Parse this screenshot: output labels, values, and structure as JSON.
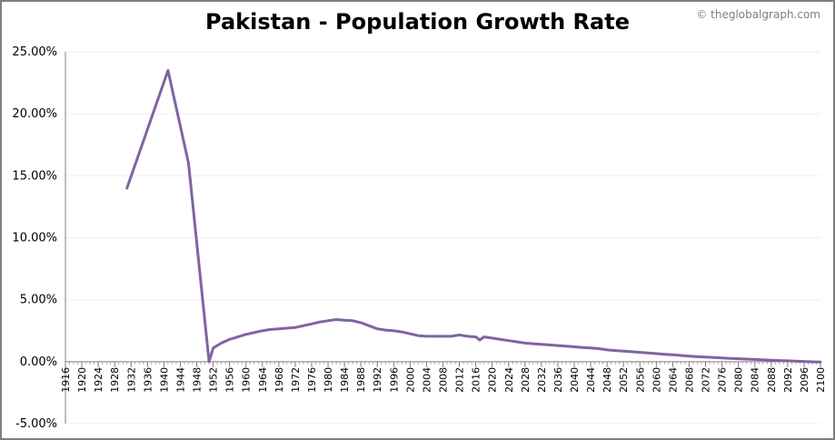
{
  "chart_data": {
    "type": "line",
    "title": "Pakistan - Population Growth Rate",
    "xlabel": "",
    "ylabel": "",
    "colors": {
      "line": "#8064a2",
      "grid": "#efefef",
      "axis": "#7f7f7f"
    },
    "xlim": [
      1916,
      2100
    ],
    "ylim": [
      -5,
      25
    ],
    "grid": true,
    "legend": "none",
    "y_ticks": [
      -5,
      0,
      5,
      10,
      15,
      20,
      25
    ],
    "y_tick_labels": [
      "-5.00%",
      "0.00%",
      "5.00%",
      "10.00%",
      "15.00%",
      "20.00%",
      "25.00%"
    ],
    "x_ticks": [
      1916,
      1920,
      1924,
      1928,
      1932,
      1936,
      1940,
      1944,
      1948,
      1952,
      1956,
      1960,
      1964,
      1968,
      1972,
      1976,
      1980,
      1984,
      1988,
      1992,
      1996,
      2000,
      2004,
      2008,
      2012,
      2016,
      2020,
      2024,
      2028,
      2032,
      2036,
      2040,
      2044,
      2048,
      2052,
      2056,
      2060,
      2064,
      2068,
      2072,
      2076,
      2080,
      2084,
      2088,
      2092,
      2096,
      2100
    ],
    "x_tick_labels": [
      "1916",
      "1920",
      "1924",
      "1928",
      "1932",
      "1936",
      "1940",
      "1944",
      "1948",
      "1952",
      "1956",
      "1960",
      "1964",
      "1968",
      "1972",
      "1976",
      "1980",
      "1984",
      "1988",
      "1992",
      "1996",
      "2000",
      "2004",
      "2008",
      "2012",
      "2016",
      "2020",
      "2024",
      "2028",
      "2032",
      "2036",
      "2040",
      "2044",
      "2048",
      "2052",
      "2056",
      "2060",
      "2064",
      "2068",
      "2072",
      "2076",
      "2080",
      "2084",
      "2088",
      "2092",
      "2096",
      "2100"
    ],
    "series": [
      {
        "points": [
          [
            1931,
            14.0
          ],
          [
            1941,
            23.5
          ],
          [
            1946,
            16.0
          ],
          [
            1951,
            0.0
          ],
          [
            1952,
            1.1
          ],
          [
            1954,
            1.5
          ],
          [
            1956,
            1.8
          ],
          [
            1958,
            2.0
          ],
          [
            1960,
            2.2
          ],
          [
            1962,
            2.35
          ],
          [
            1964,
            2.5
          ],
          [
            1966,
            2.6
          ],
          [
            1968,
            2.65
          ],
          [
            1970,
            2.7
          ],
          [
            1972,
            2.75
          ],
          [
            1974,
            2.9
          ],
          [
            1976,
            3.05
          ],
          [
            1978,
            3.2
          ],
          [
            1980,
            3.3
          ],
          [
            1982,
            3.4
          ],
          [
            1984,
            3.35
          ],
          [
            1986,
            3.3
          ],
          [
            1988,
            3.15
          ],
          [
            1990,
            2.9
          ],
          [
            1992,
            2.65
          ],
          [
            1994,
            2.55
          ],
          [
            1996,
            2.5
          ],
          [
            1998,
            2.4
          ],
          [
            2000,
            2.25
          ],
          [
            2002,
            2.1
          ],
          [
            2004,
            2.05
          ],
          [
            2006,
            2.05
          ],
          [
            2008,
            2.05
          ],
          [
            2010,
            2.05
          ],
          [
            2012,
            2.15
          ],
          [
            2014,
            2.05
          ],
          [
            2016,
            2.0
          ],
          [
            2017,
            1.75
          ],
          [
            2018,
            2.0
          ],
          [
            2020,
            1.9
          ],
          [
            2022,
            1.8
          ],
          [
            2024,
            1.7
          ],
          [
            2026,
            1.6
          ],
          [
            2028,
            1.5
          ],
          [
            2030,
            1.45
          ],
          [
            2032,
            1.4
          ],
          [
            2034,
            1.35
          ],
          [
            2036,
            1.3
          ],
          [
            2038,
            1.25
          ],
          [
            2040,
            1.2
          ],
          [
            2042,
            1.15
          ],
          [
            2044,
            1.1
          ],
          [
            2046,
            1.05
          ],
          [
            2048,
            0.95
          ],
          [
            2050,
            0.9
          ],
          [
            2052,
            0.85
          ],
          [
            2054,
            0.8
          ],
          [
            2056,
            0.75
          ],
          [
            2058,
            0.7
          ],
          [
            2060,
            0.65
          ],
          [
            2062,
            0.6
          ],
          [
            2064,
            0.55
          ],
          [
            2066,
            0.5
          ],
          [
            2068,
            0.45
          ],
          [
            2070,
            0.4
          ],
          [
            2072,
            0.37
          ],
          [
            2074,
            0.33
          ],
          [
            2076,
            0.3
          ],
          [
            2078,
            0.27
          ],
          [
            2080,
            0.24
          ],
          [
            2082,
            0.21
          ],
          [
            2084,
            0.18
          ],
          [
            2086,
            0.15
          ],
          [
            2088,
            0.12
          ],
          [
            2090,
            0.09
          ],
          [
            2092,
            0.07
          ],
          [
            2094,
            0.04
          ],
          [
            2096,
            0.02
          ],
          [
            2098,
            -0.01
          ],
          [
            2100,
            -0.03
          ]
        ]
      }
    ]
  },
  "watermark": "© theglobalgraph.com"
}
